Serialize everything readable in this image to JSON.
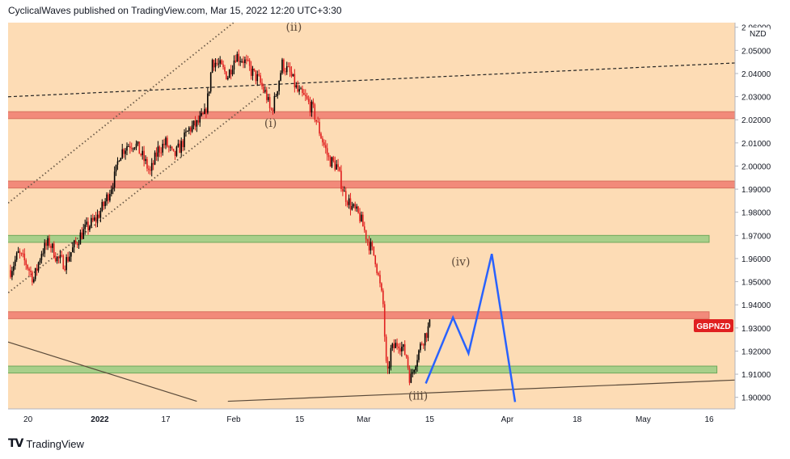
{
  "header": {
    "publisher": "CyclicalWaves published on TradingView.com, Mar 15, 2022 12:20 UTC+3:30"
  },
  "footer": {
    "brand": "TradingView",
    "logo": "tradingview-logo-icon"
  },
  "colors": {
    "background": "#fddcb5",
    "candle_up": "#000000",
    "candle_down": "#e02020",
    "resistance_zone": "#f28a7a",
    "support_zone": "#a8cf8a",
    "projection": "#2962ff",
    "symbol_badge": "#e02020"
  },
  "chart_data": {
    "type": "candlestick",
    "symbol": "GBPNZD",
    "unit": "NZD",
    "ylim": [
      1.895,
      2.062
    ],
    "y_ticks": [
      "1.90000",
      "1.91000",
      "1.92000",
      "1.93000",
      "1.94000",
      "1.95000",
      "1.96000",
      "1.97000",
      "1.98000",
      "1.99000",
      "2.00000",
      "2.01000",
      "2.02000",
      "2.03000",
      "2.04000",
      "2.05000",
      "2.06000"
    ],
    "x_ticks": [
      "20",
      "2022",
      "17",
      "Feb",
      "15",
      "Mar",
      "15",
      "Apr",
      "18",
      "May",
      "16"
    ],
    "x_tick_bold": [
      "2022"
    ],
    "price_path": [
      [
        0,
        1.955
      ],
      [
        2,
        1.962
      ],
      [
        4,
        1.958
      ],
      [
        6,
        1.951
      ],
      [
        8,
        1.963
      ],
      [
        10,
        1.967
      ],
      [
        12,
        1.96
      ],
      [
        14,
        1.958
      ],
      [
        16,
        1.964
      ],
      [
        18,
        1.97
      ],
      [
        20,
        1.974
      ],
      [
        22,
        1.977
      ],
      [
        24,
        1.983
      ],
      [
        25,
        1.987
      ],
      [
        27,
        1.996
      ],
      [
        28,
        2.005
      ],
      [
        30,
        2.009
      ],
      [
        32,
        2.01
      ],
      [
        34,
        2.004
      ],
      [
        36,
        1.997
      ],
      [
        38,
        2.007
      ],
      [
        40,
        2.01
      ],
      [
        42,
        2.004
      ],
      [
        44,
        2.009
      ],
      [
        46,
        2.016
      ],
      [
        48,
        2.018
      ],
      [
        50,
        2.022
      ],
      [
        51,
        2.031
      ],
      [
        52,
        2.046
      ],
      [
        54,
        2.043
      ],
      [
        56,
        2.039
      ],
      [
        58,
        2.048
      ],
      [
        60,
        2.046
      ],
      [
        62,
        2.041
      ],
      [
        64,
        2.037
      ],
      [
        66,
        2.03
      ],
      [
        67,
        2.023
      ],
      [
        68,
        2.028
      ],
      [
        69,
        2.036
      ],
      [
        70,
        2.044
      ],
      [
        72,
        2.04
      ],
      [
        74,
        2.032
      ],
      [
        76,
        2.029
      ],
      [
        78,
        2.024
      ],
      [
        80,
        2.013
      ],
      [
        82,
        2.003
      ],
      [
        84,
        2.0
      ],
      [
        86,
        1.988
      ],
      [
        88,
        1.982
      ],
      [
        90,
        1.978
      ],
      [
        92,
        1.968
      ],
      [
        94,
        1.96
      ],
      [
        96,
        1.94
      ],
      [
        97,
        1.907
      ],
      [
        98,
        1.92
      ],
      [
        100,
        1.924
      ],
      [
        102,
        1.918
      ],
      [
        103,
        1.907
      ],
      [
        104,
        1.914
      ],
      [
        106,
        1.924
      ],
      [
        108,
        1.931
      ]
    ],
    "horizontal_zones": [
      {
        "kind": "resistance",
        "low": 2.0205,
        "high": 2.0235,
        "from": -5,
        "to": 200
      },
      {
        "kind": "resistance",
        "low": 1.9905,
        "high": 1.9935,
        "from": -5,
        "to": 200
      },
      {
        "kind": "support",
        "low": 1.967,
        "high": 1.97,
        "from": -5,
        "to": 180
      },
      {
        "kind": "resistance",
        "low": 1.934,
        "high": 1.937,
        "from": -5,
        "to": 180
      },
      {
        "kind": "support",
        "low": 1.9105,
        "high": 1.9135,
        "from": -5,
        "to": 182
      }
    ],
    "trend_lines": [
      {
        "style": "dashed",
        "points": [
          [
            -5,
            2.0296
          ],
          [
            200,
            2.0456
          ]
        ]
      },
      {
        "style": "dotted",
        "points": [
          [
            -5,
            1.9781
          ],
          [
            60,
            2.0654
          ]
        ]
      },
      {
        "style": "dotted",
        "points": [
          [
            -5,
            1.9394
          ],
          [
            67,
            2.0342
          ]
        ]
      },
      {
        "style": "solid",
        "points": [
          [
            -5,
            1.9262
          ],
          [
            48,
            1.8983
          ]
        ]
      },
      {
        "style": "solid",
        "points": [
          [
            56,
            1.8983
          ],
          [
            200,
            1.9084
          ]
        ]
      }
    ],
    "projection": {
      "points": [
        [
          107,
          1.906
        ],
        [
          114,
          1.9345
        ],
        [
          118,
          1.919
        ],
        [
          124,
          1.962
        ],
        [
          130,
          1.898
        ]
      ]
    },
    "wave_labels": [
      {
        "text": "(i)",
        "x": 67,
        "y": 2.017
      },
      {
        "text": "(ii)",
        "x": 73,
        "y": 2.0585
      },
      {
        "text": "(iii)",
        "x": 105,
        "y": 1.899
      },
      {
        "text": "(iv)",
        "x": 116,
        "y": 1.957
      }
    ]
  }
}
